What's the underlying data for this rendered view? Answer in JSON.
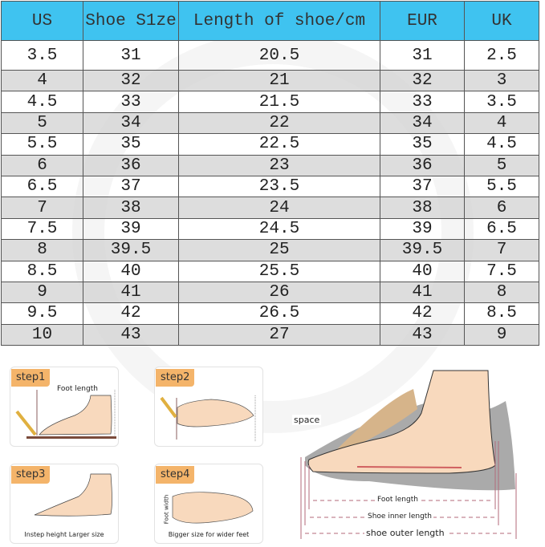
{
  "table": {
    "headers": [
      "US",
      "Shoe S1ze",
      "Length of shoe/cm",
      "EUR",
      "UK"
    ],
    "rows": [
      [
        "3.5",
        "31",
        "20.5",
        "31",
        "2.5"
      ],
      [
        "4",
        "32",
        "21",
        "32",
        "3"
      ],
      [
        "4.5",
        "33",
        "21.5",
        "33",
        "3.5"
      ],
      [
        "5",
        "34",
        "22",
        "34",
        "4"
      ],
      [
        "5.5",
        "35",
        "22.5",
        "35",
        "4.5"
      ],
      [
        "6",
        "36",
        "23",
        "36",
        "5"
      ],
      [
        "6.5",
        "37",
        "23.5",
        "37",
        "5.5"
      ],
      [
        "7",
        "38",
        "24",
        "38",
        "6"
      ],
      [
        "7.5",
        "39",
        "24.5",
        "39",
        "6.5"
      ],
      [
        "8",
        "39.5",
        "25",
        "39.5",
        "7"
      ],
      [
        "8.5",
        "40",
        "25.5",
        "40",
        "7.5"
      ],
      [
        "9",
        "41",
        "26",
        "41",
        "8"
      ],
      [
        "9.5",
        "42",
        "26.5",
        "42",
        "8.5"
      ],
      [
        "10",
        "43",
        "27",
        "43",
        "9"
      ]
    ],
    "header_color": "#3fc3f0"
  },
  "steps": [
    {
      "label": "step1",
      "caption": "",
      "annotation": "Foot length"
    },
    {
      "label": "step2",
      "caption": ""
    },
    {
      "label": "step3",
      "caption": "Instep height Larger size"
    },
    {
      "label": "step4",
      "caption": "Bigger size for wider feet",
      "annotation": "Foot width"
    }
  ],
  "diagram": {
    "space": "space",
    "foot_length": "Foot length",
    "inner": "Shoe inner length",
    "outer": "shoe outer length"
  }
}
